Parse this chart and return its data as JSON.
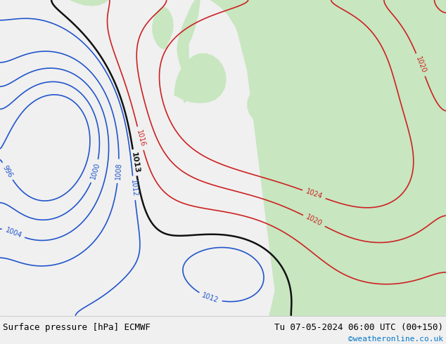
{
  "title_left": "Surface pressure [hPa] ECMWF",
  "title_right": "Tu 07-05-2024 06:00 UTC (00+150)",
  "copyright": "©weatheronline.co.uk",
  "land_color": "#c8e6c0",
  "sea_color": "#dde8f0",
  "footer_bg": "#f0f0f0",
  "figsize": [
    6.34,
    4.9
  ],
  "dpi": 100,
  "levels_blue": [
    996,
    1000,
    1004,
    1008,
    1012
  ],
  "levels_black": [
    1013
  ],
  "levels_red": [
    1016,
    1020,
    1024
  ],
  "color_blue": "#2255cc",
  "color_black": "#111111",
  "color_red": "#cc2222",
  "color_copyright": "#0077cc"
}
